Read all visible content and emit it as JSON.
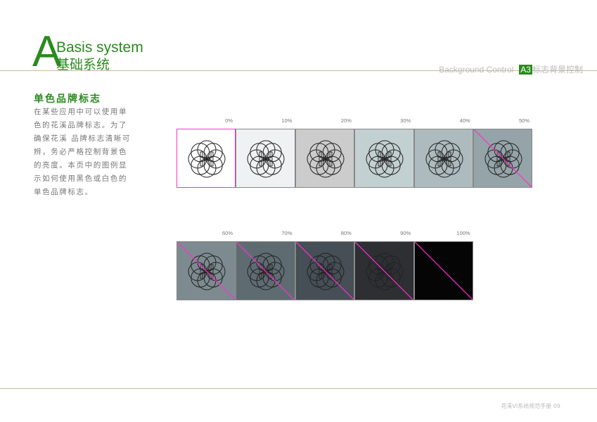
{
  "header": {
    "letter": "A",
    "title_en": "Basis system",
    "title_cn": "基础系统",
    "right_en": "Background Control",
    "right_code": "A3",
    "right_cn": "标志背景控制"
  },
  "section": {
    "title": "单色品牌标志",
    "lines": [
      "在某些应用中可以使用单",
      "色的花溪品牌标志。为了",
      "确保花溪 品牌标志清晰可",
      "辨，务必严格控制背景色",
      "的亮度。本页中的图例显",
      "示如何使用黑色或白色的",
      "单色品牌标志。"
    ]
  },
  "logo_letter": "H",
  "colors": {
    "accent": "#2a8a1e",
    "marker": "#ff2fd0"
  },
  "swatches": [
    {
      "label": "0%",
      "color": "#ffffff",
      "crossed": false,
      "highlight": true
    },
    {
      "label": "10%",
      "color": "#eef2f2",
      "crossed": false
    },
    {
      "label": "20%",
      "color": "#cccccc",
      "crossed": false
    },
    {
      "label": "30%",
      "color": "#c3d0d2",
      "crossed": false
    },
    {
      "label": "40%",
      "color": "#adbbbe",
      "crossed": false
    },
    {
      "label": "50%",
      "color": "#95a4a8",
      "crossed": true
    },
    {
      "label": "60%",
      "color": "#7d8b90",
      "crossed": true
    },
    {
      "label": "70%",
      "color": "#5e6c72",
      "crossed": true
    },
    {
      "label": "80%",
      "color": "#454f55",
      "crossed": true
    },
    {
      "label": "90%",
      "color": "#2d2f33",
      "crossed": true
    },
    {
      "label": "100%",
      "color": "#050505",
      "crossed": true,
      "no_logo": true
    }
  ],
  "footer": "花溪VI系统规范手册 09"
}
